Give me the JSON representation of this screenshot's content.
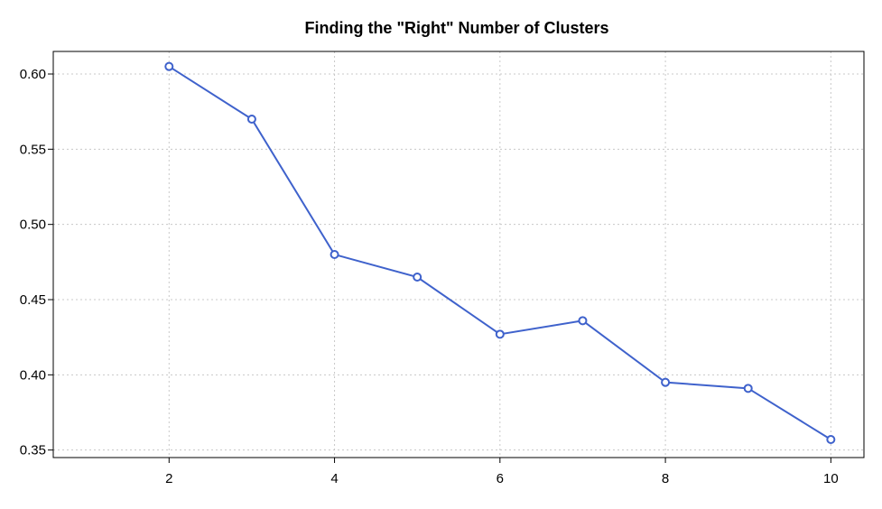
{
  "chart_data": {
    "type": "line",
    "title": "Finding the \"Right\" Number of Clusters",
    "xlabel": "",
    "ylabel": "",
    "x": [
      2,
      3,
      4,
      5,
      6,
      7,
      8,
      9,
      10
    ],
    "series": [
      {
        "values": [
          0.605,
          0.57,
          0.48,
          0.465,
          0.427,
          0.436,
          0.395,
          0.391,
          0.357
        ]
      }
    ],
    "xlim": [
      0.6,
      10.4
    ],
    "ylim": [
      0.345,
      0.615
    ],
    "x_ticks": [
      "2",
      "4",
      "6",
      "8",
      "10"
    ],
    "y_ticks": [
      "0.60",
      "0.55",
      "0.50",
      "0.45",
      "0.40",
      "0.35"
    ],
    "grid": true,
    "colors": {
      "series": "#3f62cc",
      "grid": "#c8c8c8"
    }
  }
}
